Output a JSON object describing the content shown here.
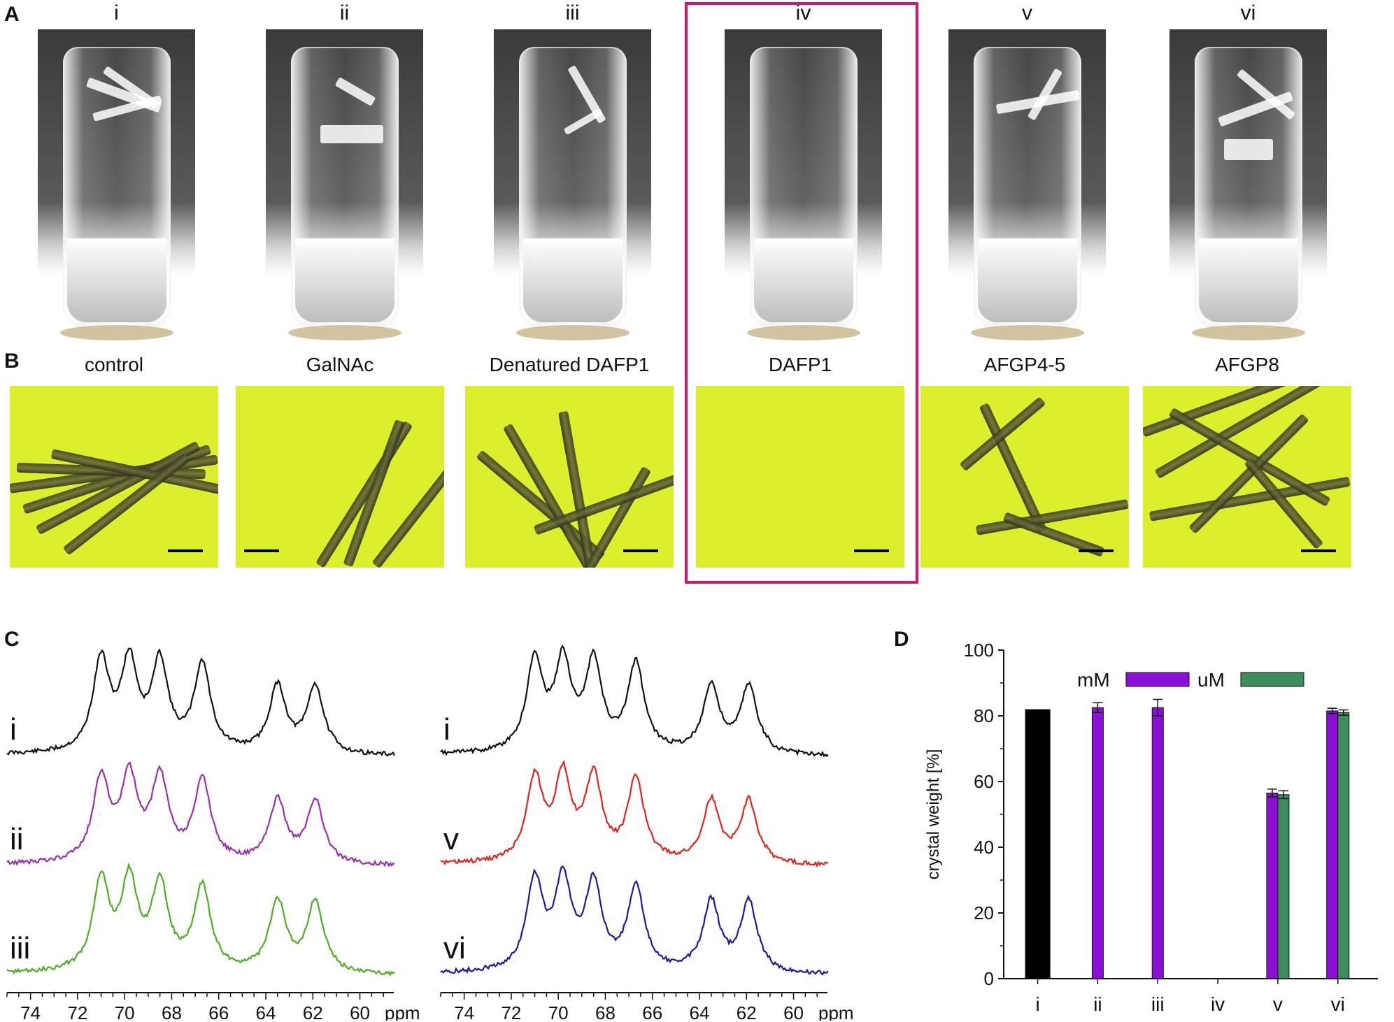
{
  "panels": {
    "a_label": "A",
    "b_label": "B",
    "c_label": "C",
    "d_label": "D"
  },
  "samples": [
    {
      "roman": "i",
      "name": "control"
    },
    {
      "roman": "ii",
      "name": "GalNAc"
    },
    {
      "roman": "iii",
      "name": "Denatured DAFP1"
    },
    {
      "roman": "iv",
      "name": "DAFP1"
    },
    {
      "roman": "v",
      "name": "AFGP4-5"
    },
    {
      "roman": "vi",
      "name": "AFGP8"
    }
  ],
  "colors": {
    "highlight": "#d6156a",
    "micrograph_bg": "#dcef2d",
    "spectrum_i": "#111111",
    "spectrum_ii": "#9b2fae",
    "spectrum_iii": "#4caf22",
    "spectrum_v": "#e0241b",
    "spectrum_vi": "#1a1aa0",
    "bar_control": "#000000",
    "bar_mM": "#8a10d6",
    "bar_uM": "#3d8c5c"
  },
  "nmr": {
    "left_traces": [
      {
        "label": "i",
        "color_key": "spectrum_i"
      },
      {
        "label": "ii",
        "color_key": "spectrum_ii"
      },
      {
        "label": "iii",
        "color_key": "spectrum_iii"
      }
    ],
    "right_traces": [
      {
        "label": "i",
        "color_key": "spectrum_i"
      },
      {
        "label": "v",
        "color_key": "spectrum_v"
      },
      {
        "label": "vi",
        "color_key": "spectrum_vi"
      }
    ],
    "axis_ticks": [
      "74",
      "72",
      "70",
      "68",
      "66",
      "64",
      "62",
      "60"
    ],
    "axis_unit": "ppm",
    "axis_range": [
      75,
      58.5
    ],
    "peaks_ppm": [
      71.0,
      69.8,
      68.5,
      66.7,
      63.5,
      61.9
    ]
  },
  "chart_data": {
    "type": "bar",
    "categories": [
      "i",
      "ii",
      "iii",
      "iv",
      "v",
      "vi"
    ],
    "series": [
      {
        "name": "mM",
        "values": [
          82,
          82.5,
          82.5,
          0,
          56.5,
          81.5
        ],
        "errors": [
          0,
          1.5,
          2.5,
          0,
          1.2,
          0.8
        ]
      },
      {
        "name": "uM",
        "values": [
          null,
          null,
          null,
          0,
          56,
          81
        ],
        "errors": [
          0,
          0,
          0,
          0,
          1.2,
          0.8
        ]
      }
    ],
    "control_category": "i",
    "ylabel": "crystal weight [%]",
    "ylim": [
      0,
      100
    ],
    "yticks": [
      0,
      20,
      40,
      60,
      80,
      100
    ],
    "legend_position": "top-center",
    "grid": false
  }
}
